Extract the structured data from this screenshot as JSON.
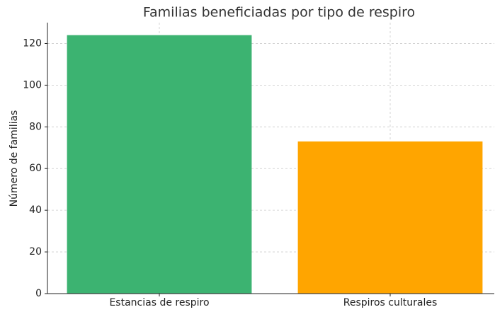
{
  "chart_data": {
    "type": "bar",
    "title": "Familias beneficiadas por tipo de respiro",
    "y_label": "Número de familias",
    "categories": [
      "Estancias de respiro",
      "Respiros culturales"
    ],
    "values": [
      124,
      73
    ],
    "colors": [
      "#3cb371",
      "#ffa500"
    ],
    "ylim": [
      0,
      130
    ],
    "yticks": [
      0,
      20,
      40,
      60,
      80,
      100,
      120
    ],
    "grid": true
  }
}
